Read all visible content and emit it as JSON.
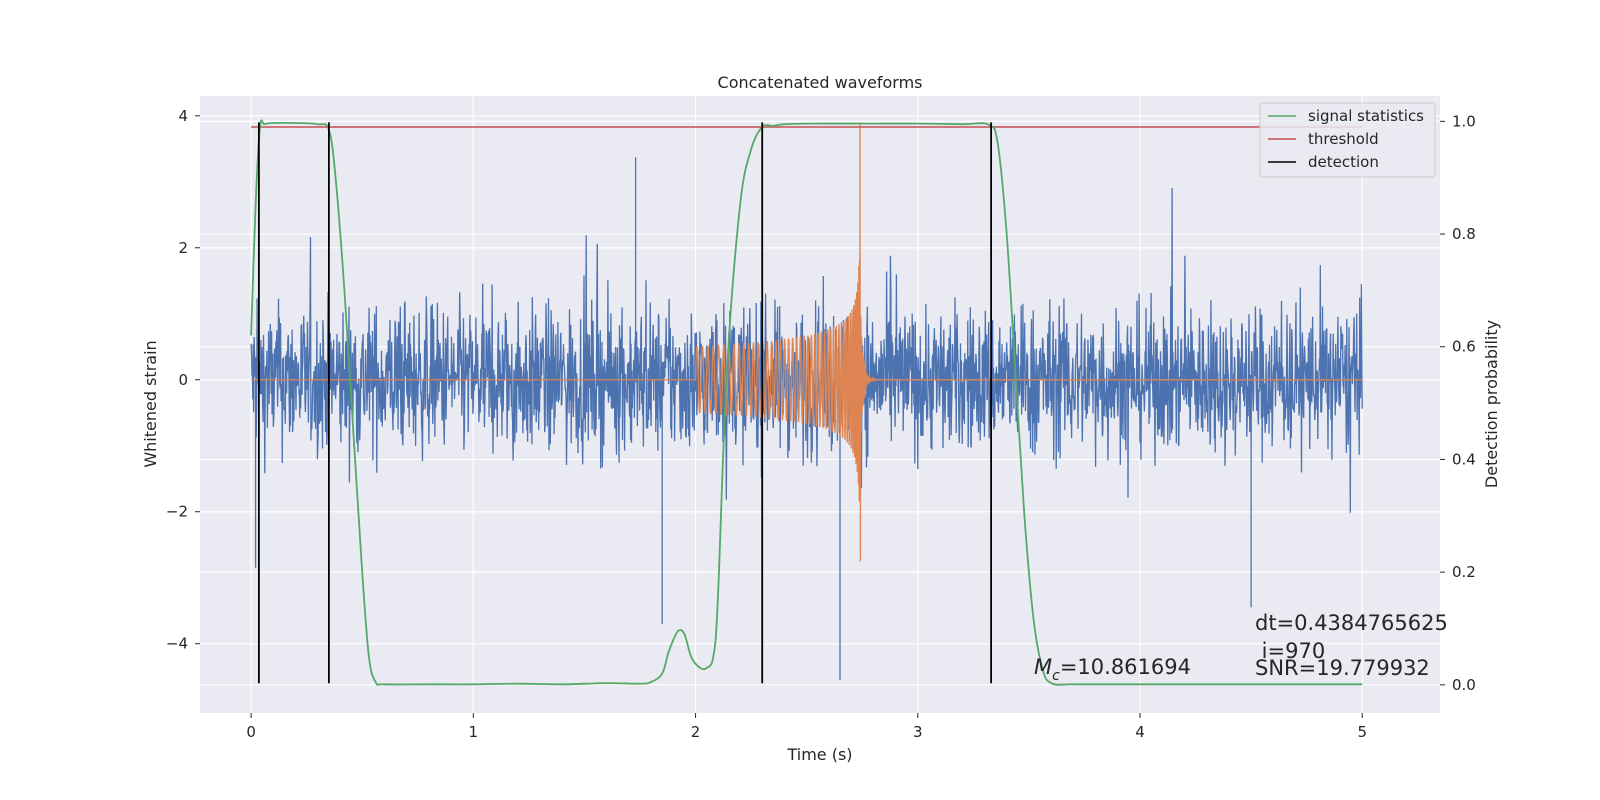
{
  "chart_data": {
    "type": "line",
    "title": "Concatenated waveforms",
    "xlabel": "Time (s)",
    "ylabel_left": "Whitened strain",
    "ylabel_right": "Detection probability",
    "xlim": [
      -0.23,
      5.35
    ],
    "ylim_left": [
      -5.05,
      4.3
    ],
    "ylim_right": [
      -0.05,
      1.045
    ],
    "x_ticks": [
      0,
      1,
      2,
      3,
      4,
      5
    ],
    "x_tick_labels": [
      "0",
      "1",
      "2",
      "3",
      "4",
      "5"
    ],
    "y_left_ticks": [
      4,
      2,
      0,
      -2,
      -4
    ],
    "y_left_tick_labels": [
      "4",
      "2",
      "0",
      "−2",
      "−4"
    ],
    "y_right_ticks": [
      1.0,
      0.8,
      0.6,
      0.4,
      0.2,
      0.0
    ],
    "y_right_tick_labels": [
      "1.0",
      "0.8",
      "0.6",
      "0.4",
      "0.2",
      "0.0"
    ],
    "grid": true,
    "legend_position": "top-right",
    "colors": {
      "background": "#eaeaf2",
      "grid": "#ffffff",
      "noise": "#4c72b0",
      "template": "#dd8452",
      "signal_statistics": "#55a868",
      "threshold": "#c44e52",
      "detection": "#000000"
    },
    "series": [
      {
        "name": "signal statistics",
        "axis": "right",
        "x": [
          0.0,
          0.02,
          0.04,
          0.06,
          0.1,
          0.2,
          0.3,
          0.35,
          0.38,
          0.42,
          0.46,
          0.5,
          0.53,
          0.56,
          0.6,
          0.8,
          1.0,
          1.2,
          1.4,
          1.6,
          1.75,
          1.8,
          1.85,
          1.88,
          1.92,
          1.95,
          1.98,
          2.02,
          2.05,
          2.08,
          2.1,
          2.14,
          2.2,
          2.25,
          2.3,
          2.35,
          2.4,
          2.5,
          2.8,
          3.0,
          3.2,
          3.32,
          3.36,
          3.4,
          3.44,
          3.48,
          3.52,
          3.56,
          3.6,
          3.7,
          4.0,
          4.5,
          5.0
        ],
        "y": [
          0.62,
          0.85,
          0.99,
          0.995,
          0.997,
          0.997,
          0.995,
          0.985,
          0.9,
          0.7,
          0.45,
          0.2,
          0.05,
          0.005,
          0.001,
          0.001,
          0.001,
          0.002,
          0.001,
          0.003,
          0.002,
          0.005,
          0.02,
          0.06,
          0.095,
          0.09,
          0.05,
          0.03,
          0.03,
          0.05,
          0.15,
          0.55,
          0.85,
          0.95,
          0.99,
          0.992,
          0.995,
          0.996,
          0.996,
          0.996,
          0.995,
          0.994,
          0.96,
          0.8,
          0.55,
          0.3,
          0.12,
          0.03,
          0.003,
          0.001,
          0.001,
          0.001,
          0.001
        ]
      },
      {
        "name": "threshold",
        "axis": "right",
        "x": [
          0.0,
          5.0
        ],
        "y": [
          0.99,
          0.99
        ]
      },
      {
        "name": "detection",
        "axis": "left",
        "x": [
          0.035,
          0.35,
          2.3,
          3.33
        ],
        "y_range": [
          -4.6,
          3.9
        ]
      }
    ],
    "waveforms": {
      "noise": {
        "x_range": [
          0.0,
          5.0
        ],
        "typical_amplitude": 1.3,
        "extremes": [
          {
            "x": 0.02,
            "y": -2.85
          },
          {
            "x": 1.73,
            "y": 3.37
          },
          {
            "x": 1.85,
            "y": -3.7
          },
          {
            "x": 2.65,
            "y": -4.55
          },
          {
            "x": 4.5,
            "y": -3.45
          }
        ]
      },
      "template": {
        "x_start": 2.0,
        "merger_x": 2.74,
        "start_amplitude": 0.5,
        "peak_max": 3.9,
        "peak_min": -2.75,
        "ringdown_end": 2.9
      }
    },
    "annotations": {
      "mc": "=10.861694",
      "dt": "dt=0.4384765625",
      "i": " i=970",
      "snr": "SNR=19.779932"
    }
  }
}
